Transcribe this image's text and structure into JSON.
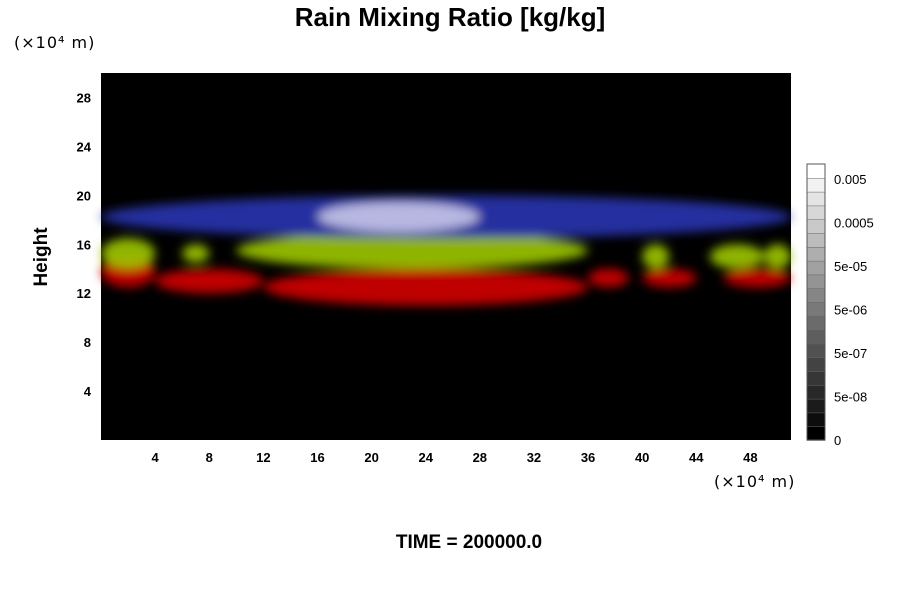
{
  "chart_data": {
    "type": "heatmap",
    "title": "Rain Mixing Ratio [kg/kg]",
    "xlabel": "",
    "ylabel": "Height",
    "x_unit": "(×10⁴ m)",
    "y_unit": "(×10⁴ m)",
    "xlim": [
      0,
      51
    ],
    "ylim": [
      0,
      30
    ],
    "x_ticks": [
      4,
      8,
      12,
      16,
      20,
      24,
      28,
      32,
      36,
      40,
      44,
      48
    ],
    "y_ticks": [
      4,
      8,
      12,
      16,
      20,
      24,
      28
    ],
    "background_color": "#000000",
    "colorbar": {
      "scale": "log",
      "range": [
        0,
        0.05
      ],
      "labels": [
        "0.005",
        "0.0005",
        "5e-05",
        "5e-06",
        "5e-07",
        "5e-08",
        "0"
      ],
      "colors": [
        "#000000",
        "#ffffff"
      ]
    },
    "layers": [
      {
        "name": "red",
        "color": "#d40000",
        "ranges": [
          [
            0,
            4,
            12.5,
            15
          ],
          [
            4,
            12,
            12,
            14
          ],
          [
            12,
            36,
            11,
            14
          ],
          [
            36,
            39,
            12.5,
            14
          ],
          [
            40,
            44,
            12.5,
            14
          ],
          [
            46,
            51,
            12.5,
            14
          ]
        ]
      },
      {
        "name": "yellow-green",
        "color": "#9ec800",
        "ranges": [
          [
            0,
            4,
            14,
            16.5
          ],
          [
            6,
            8,
            14.5,
            16
          ],
          [
            10,
            36,
            14,
            17
          ],
          [
            40,
            42,
            14,
            16
          ],
          [
            45,
            49,
            14,
            16
          ],
          [
            49,
            51,
            14,
            16
          ]
        ]
      },
      {
        "name": "blue",
        "color": "#2a34b0",
        "ranges": [
          [
            0,
            51,
            16.5,
            20
          ]
        ]
      },
      {
        "name": "white-lavender",
        "color": "#c8c6e8",
        "ranges": [
          [
            16,
            28,
            17,
            19.5
          ]
        ]
      }
    ],
    "annotations": [
      "TIME = 200000.0"
    ]
  }
}
